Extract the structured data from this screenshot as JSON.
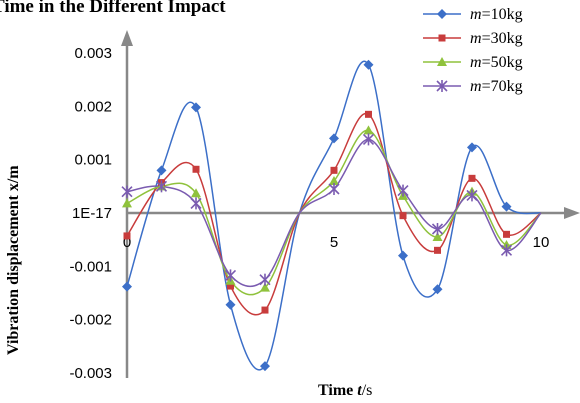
{
  "chart_data": {
    "type": "line",
    "title": "Time in the Different Impact",
    "xlabel": "Time t/s",
    "ylabel": "Vibration displacement  x/m",
    "xlim": [
      0,
      10.5
    ],
    "ylim": [
      -0.003,
      0.003
    ],
    "x_ticks": [
      "0",
      "5",
      "10"
    ],
    "y_ticks": [
      "0.003",
      "0.002",
      "0.001",
      "1E-17",
      "-0.001",
      "-0.002",
      "-0.003"
    ],
    "grid": false,
    "legend_position": "top-right",
    "x": [
      0,
      0.833,
      1.667,
      2.5,
      3.333,
      4.167,
      5.0,
      5.833,
      6.667,
      7.5,
      8.333,
      9.167,
      10.0
    ],
    "series": [
      {
        "name": "m=10kg",
        "color": "#3c6fc8",
        "marker": "diamond",
        "values": [
          -0.00138,
          0.0008,
          0.00198,
          -0.00172,
          -0.00287,
          0.0,
          0.0014,
          0.00278,
          -0.0008,
          -0.00143,
          0.00123,
          0.00012,
          0.0
        ]
      },
      {
        "name": "m=30kg",
        "color": "#c83c3c",
        "marker": "square",
        "values": [
          -0.00043,
          0.00057,
          0.00082,
          -0.00137,
          -0.00182,
          0.0,
          0.0008,
          0.00185,
          -5e-05,
          -0.0007,
          0.00065,
          -0.0004,
          0.0
        ]
      },
      {
        "name": "m=50kg",
        "color": "#8fc23c",
        "marker": "triangle",
        "values": [
          0.00018,
          0.0005,
          0.00037,
          -0.00127,
          -0.0014,
          0.0,
          0.0006,
          0.00155,
          0.00032,
          -0.00045,
          0.0004,
          -0.0006,
          0.0
        ]
      },
      {
        "name": "m=70kg",
        "color": "#7a5bb0",
        "marker": "star",
        "values": [
          0.0004,
          0.0005,
          0.00018,
          -0.00117,
          -0.00125,
          0.0,
          0.00045,
          0.00138,
          0.00042,
          -0.0003,
          0.00033,
          -0.0007,
          0.0
        ]
      }
    ]
  }
}
